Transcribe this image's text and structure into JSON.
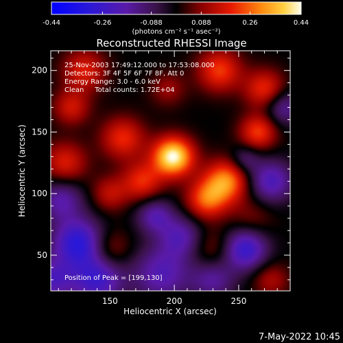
{
  "chart_data": {
    "type": "heatmap",
    "title": "Reconstructed RHESSI Image",
    "xlabel": "Heliocentric X (arcsec)",
    "ylabel": "Heliocentric Y (arcsec)",
    "xlim": [
      104,
      290
    ],
    "ylim": [
      21,
      216
    ],
    "x_ticks": [
      150,
      200,
      250
    ],
    "y_ticks": [
      50,
      100,
      150,
      200
    ],
    "colorbar": {
      "range": [
        -0.44,
        0.44
      ],
      "tick_values": [
        -0.44,
        -0.26,
        -0.088,
        0.088,
        0.26,
        0.44
      ],
      "tick_labels": [
        "-0.44",
        "-0.26",
        "-0.088",
        "0.088",
        "0.26",
        "0.44"
      ],
      "units": "(photons cm⁻² s⁻¹ asec⁻²)"
    },
    "annotations": [
      "25-Nov-2003 17:49:12.000 to 17:53:08.000",
      "Detectors: 3F 4F 5F 6F 7F 8F, Att 0",
      "Energy Range: 3.0 - 6.0 keV",
      "Clean     Total counts: 1.72E+04"
    ],
    "peak_label": "Position of Peak = [199,130]",
    "peak": {
      "x": 199,
      "y": 130,
      "value": 0.44
    },
    "sources": [
      {
        "x": 199,
        "y": 130,
        "amp": 0.44,
        "sigma": 11
      },
      {
        "x": 240,
        "y": 110,
        "amp": 0.3,
        "sigma": 12
      },
      {
        "x": 225,
        "y": 95,
        "amp": 0.24,
        "sigma": 11
      },
      {
        "x": 175,
        "y": 110,
        "amp": 0.2,
        "sigma": 11
      },
      {
        "x": 160,
        "y": 145,
        "amp": 0.2,
        "sigma": 12
      },
      {
        "x": 235,
        "y": 200,
        "amp": 0.22,
        "sigma": 12
      },
      {
        "x": 270,
        "y": 185,
        "amp": 0.2,
        "sigma": 11
      },
      {
        "x": 265,
        "y": 150,
        "amp": 0.22,
        "sigma": 10
      },
      {
        "x": 130,
        "y": 200,
        "amp": 0.18,
        "sigma": 12
      },
      {
        "x": 120,
        "y": 170,
        "amp": 0.16,
        "sigma": 10
      },
      {
        "x": 115,
        "y": 125,
        "amp": 0.18,
        "sigma": 12
      },
      {
        "x": 150,
        "y": 100,
        "amp": 0.14,
        "sigma": 10
      },
      {
        "x": 150,
        "y": 55,
        "amp": 0.12,
        "sigma": 11
      },
      {
        "x": 230,
        "y": 55,
        "amp": 0.1,
        "sigma": 12
      },
      {
        "x": 260,
        "y": 80,
        "amp": 0.08,
        "sigma": 12
      },
      {
        "x": 275,
        "y": 30,
        "amp": 0.12,
        "sigma": 10
      },
      {
        "x": 195,
        "y": 185,
        "amp": 0.1,
        "sigma": 10
      },
      {
        "x": 125,
        "y": 60,
        "amp": -0.3,
        "sigma": 14
      },
      {
        "x": 140,
        "y": 30,
        "amp": -0.25,
        "sigma": 14
      },
      {
        "x": 190,
        "y": 35,
        "amp": -0.2,
        "sigma": 16
      },
      {
        "x": 205,
        "y": 65,
        "amp": -0.18,
        "sigma": 12
      },
      {
        "x": 185,
        "y": 82,
        "amp": -0.18,
        "sigma": 10
      },
      {
        "x": 255,
        "y": 55,
        "amp": -0.28,
        "sigma": 12
      },
      {
        "x": 275,
        "y": 110,
        "amp": -0.22,
        "sigma": 12
      },
      {
        "x": 285,
        "y": 170,
        "amp": -0.16,
        "sigma": 10
      },
      {
        "x": 105,
        "y": 30,
        "amp": -0.2,
        "sigma": 12
      },
      {
        "x": 230,
        "y": 30,
        "amp": -0.16,
        "sigma": 12
      },
      {
        "x": 112,
        "y": 95,
        "amp": -0.18,
        "sigma": 12
      },
      {
        "x": 255,
        "y": 128,
        "amp": -0.12,
        "sigma": 8
      }
    ]
  },
  "footer": {
    "timestamp": "7-May-2022 10:45"
  }
}
